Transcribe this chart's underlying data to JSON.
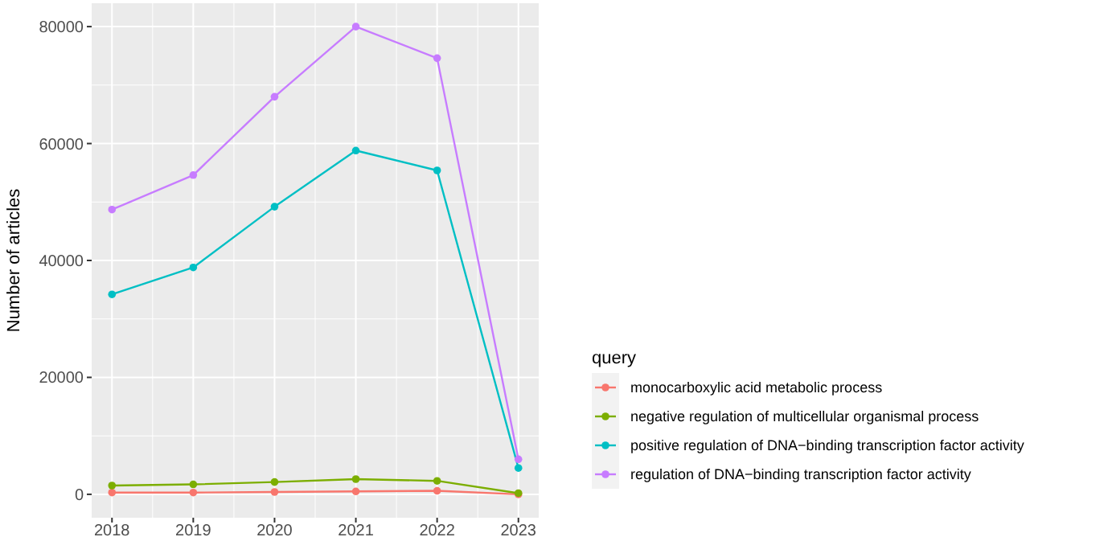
{
  "chart_data": {
    "type": "line",
    "ylabel": "Number of articles",
    "legend_title": "query",
    "legend": "right",
    "grid": true,
    "marker": "circle",
    "line_style": "solid",
    "x": [
      2018,
      2019,
      2020,
      2021,
      2022,
      2023
    ],
    "xlim": [
      2017.75,
      2023.25
    ],
    "xticks": [
      2018,
      2019,
      2020,
      2021,
      2022,
      2023
    ],
    "ylim": [
      -4000,
      84000
    ],
    "yticks": [
      0,
      20000,
      40000,
      60000,
      80000
    ],
    "series": [
      {
        "name": "monocarboxylic acid metabolic process",
        "color": "#f8766d",
        "values": [
          300,
          300,
          400,
          500,
          600,
          0
        ]
      },
      {
        "name": "negative regulation of multicellular organismal process",
        "color": "#7cae00",
        "values": [
          1500,
          1700,
          2100,
          2600,
          2300,
          200
        ]
      },
      {
        "name": "positive regulation of DNA−binding transcription factor activity",
        "color": "#00bfc4",
        "values": [
          34200,
          38800,
          49200,
          58800,
          55400,
          4500
        ]
      },
      {
        "name": "regulation of DNA−binding transcription factor activity",
        "color": "#c77cff",
        "values": [
          48700,
          54600,
          68000,
          80000,
          74600,
          6000
        ]
      }
    ]
  }
}
